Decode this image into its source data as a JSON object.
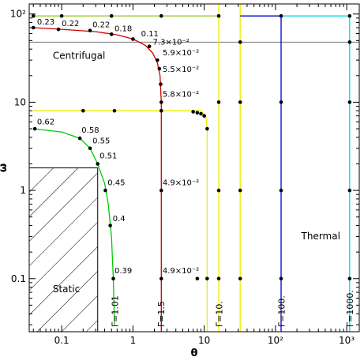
{
  "chart_data": {
    "type": "line",
    "xlabel": "θ",
    "ylabel": "ω",
    "xscale": "log",
    "yscale": "log",
    "xlim": [
      0.035,
      1500
    ],
    "ylim": [
      0.025,
      130
    ],
    "grid": false,
    "x_ticks": [
      {
        "value": 0.1,
        "label": "0.1"
      },
      {
        "value": 1,
        "label": "1"
      },
      {
        "value": 10,
        "label": "10"
      },
      {
        "value": 100,
        "label": "10²"
      },
      {
        "value": 1000,
        "label": "10³"
      }
    ],
    "y_ticks": [
      {
        "value": 0.1,
        "label": "0.1"
      },
      {
        "value": 1,
        "label": "1"
      },
      {
        "value": 10,
        "label": "10"
      },
      {
        "value": 100,
        "label": "10²"
      }
    ],
    "reference_lines": [
      {
        "axis": "y",
        "value": 48,
        "color": "#777777"
      }
    ],
    "series": [
      {
        "color": "#00cc00",
        "points": [
          [
            0.04,
            5.0
          ],
          [
            0.1,
            4.6
          ],
          [
            0.18,
            3.9
          ],
          [
            0.25,
            3.0
          ],
          [
            0.32,
            2.0
          ],
          [
            0.4,
            1.2
          ],
          [
            0.45,
            0.7
          ],
          [
            0.5,
            0.3
          ],
          [
            0.53,
            0.1
          ],
          [
            0.55,
            0.03
          ]
        ],
        "markers": [
          [
            0.042,
            5.0
          ],
          [
            0.18,
            3.9
          ],
          [
            0.25,
            3.0
          ],
          [
            0.32,
            2.0
          ],
          [
            0.41,
            1.0
          ],
          [
            0.48,
            0.4
          ],
          [
            0.53,
            0.1
          ]
        ]
      },
      {
        "color": "#cc0000",
        "points": [
          [
            0.04,
            70
          ],
          [
            0.1,
            67
          ],
          [
            0.3,
            63
          ],
          [
            0.6,
            58
          ],
          [
            1.0,
            52
          ],
          [
            1.5,
            44
          ],
          [
            1.9,
            36
          ],
          [
            2.2,
            28
          ],
          [
            2.4,
            20
          ],
          [
            2.5,
            10
          ],
          [
            2.5,
            0.025
          ]
        ],
        "markers": [
          [
            0.04,
            70
          ],
          [
            0.09,
            67
          ],
          [
            0.25,
            65
          ],
          [
            0.5,
            59
          ],
          [
            1.0,
            52
          ],
          [
            1.7,
            43
          ],
          [
            2.2,
            30
          ],
          [
            2.35,
            24
          ],
          [
            2.45,
            16
          ],
          [
            2.5,
            10
          ],
          [
            2.5,
            1.0
          ],
          [
            2.5,
            0.1
          ]
        ]
      },
      {
        "color": "#eeee00",
        "points": [
          [
            0.04,
            8.0
          ],
          [
            9.0,
            8.0
          ],
          [
            10.5,
            7.0
          ],
          [
            11.0,
            5.0
          ],
          [
            11.0,
            0.025
          ]
        ],
        "markers": [
          [
            0.2,
            8.0
          ],
          [
            0.55,
            8.0
          ],
          [
            2.5,
            8.0
          ],
          [
            7.0,
            7.8
          ],
          [
            8.0,
            7.6
          ],
          [
            9.0,
            7.4
          ],
          [
            10.0,
            7.0
          ],
          [
            11.0,
            5.0
          ]
        ]
      },
      {
        "color": "#eeee00",
        "points": [
          [
            16,
            0.025
          ],
          [
            16,
            130
          ]
        ],
        "markers": [
          [
            16,
            10
          ],
          [
            16,
            1.0
          ],
          [
            16,
            0.1
          ]
        ]
      },
      {
        "color": "#eeee00",
        "points": [
          [
            32,
            0.025
          ],
          [
            32,
            130
          ]
        ],
        "markers": []
      },
      {
        "color": "#99cc33",
        "points": [
          [
            0.04,
            95
          ],
          [
            16,
            95
          ]
        ],
        "markers": [
          [
            0.04,
            95
          ],
          [
            0.1,
            95
          ],
          [
            0.5,
            95
          ],
          [
            2.5,
            95
          ],
          [
            16,
            95
          ]
        ]
      },
      {
        "color": "#0000cc",
        "points": [
          [
            32,
            95
          ],
          [
            120,
            95
          ],
          [
            120,
            0.025
          ]
        ],
        "markers": [
          [
            120,
            95
          ],
          [
            120,
            10
          ],
          [
            120,
            1.0
          ],
          [
            120,
            0.1
          ]
        ]
      },
      {
        "color": "#00dddd",
        "points": [
          [
            120,
            95
          ],
          [
            1100,
            95
          ],
          [
            1100,
            0.025
          ]
        ],
        "markers": [
          [
            1100,
            95
          ],
          [
            1100,
            48
          ],
          [
            1100,
            10
          ],
          [
            1100,
            1.0
          ],
          [
            1100,
            0.1
          ]
        ]
      },
      {
        "color": "#000000",
        "points": [],
        "markers": [
          [
            8.0,
            0.1
          ],
          [
            11.0,
            0.1
          ],
          [
            32,
            0.1
          ],
          [
            32,
            1.0
          ],
          [
            32,
            10
          ],
          [
            32,
            48
          ]
        ]
      }
    ],
    "point_labels": [
      {
        "text": "0.62",
        "x": 0.045,
        "y": 5.6
      },
      {
        "text": "0.58",
        "x": 0.19,
        "y": 4.5
      },
      {
        "text": "0.55",
        "x": 0.27,
        "y": 3.4
      },
      {
        "text": "0.51",
        "x": 0.34,
        "y": 2.3
      },
      {
        "text": "0.45",
        "x": 0.44,
        "y": 1.15
      },
      {
        "text": "0.4",
        "x": 0.52,
        "y": 0.45
      },
      {
        "text": "0.39",
        "x": 0.55,
        "y": 0.115
      },
      {
        "text": "0.23",
        "x": 0.045,
        "y": 76
      },
      {
        "text": "0.22",
        "x": 0.1,
        "y": 73
      },
      {
        "text": "0.22",
        "x": 0.27,
        "y": 71
      },
      {
        "text": "0.18",
        "x": 0.55,
        "y": 64
      },
      {
        "text": "0.11",
        "x": 1.3,
        "y": 56
      },
      {
        "text": "7.3×10⁻²",
        "x": 1.9,
        "y": 45
      },
      {
        "text": "5.9×10⁻²",
        "x": 2.6,
        "y": 34
      },
      {
        "text": "5.5×10⁻²",
        "x": 2.6,
        "y": 22
      },
      {
        "text": "5.8×10⁻²",
        "x": 2.6,
        "y": 11.5
      },
      {
        "text": "4.9×10⁻²",
        "x": 2.6,
        "y": 1.15
      },
      {
        "text": "4.9×10⁻²",
        "x": 2.6,
        "y": 0.115
      }
    ],
    "curve_labels": [
      {
        "text": "Γ=1.01",
        "x": 0.57
      },
      {
        "text": "Γ=1.5",
        "x": 2.55
      },
      {
        "text": "Γ=10.",
        "x": 16.5
      },
      {
        "text": "Γ=100.",
        "x": 124
      },
      {
        "text": "Γ=1000.",
        "x": 1140
      }
    ],
    "region_labels": [
      {
        "text": "Centrifugal",
        "x": 0.075,
        "y": 31
      },
      {
        "text": "Thermal",
        "x": 230,
        "y": 0.28
      },
      {
        "text": "Static",
        "x": 0.075,
        "y": 0.07
      }
    ],
    "hatched_region": {
      "x": [
        0.035,
        0.32
      ],
      "y": [
        0.025,
        1.8
      ]
    }
  }
}
